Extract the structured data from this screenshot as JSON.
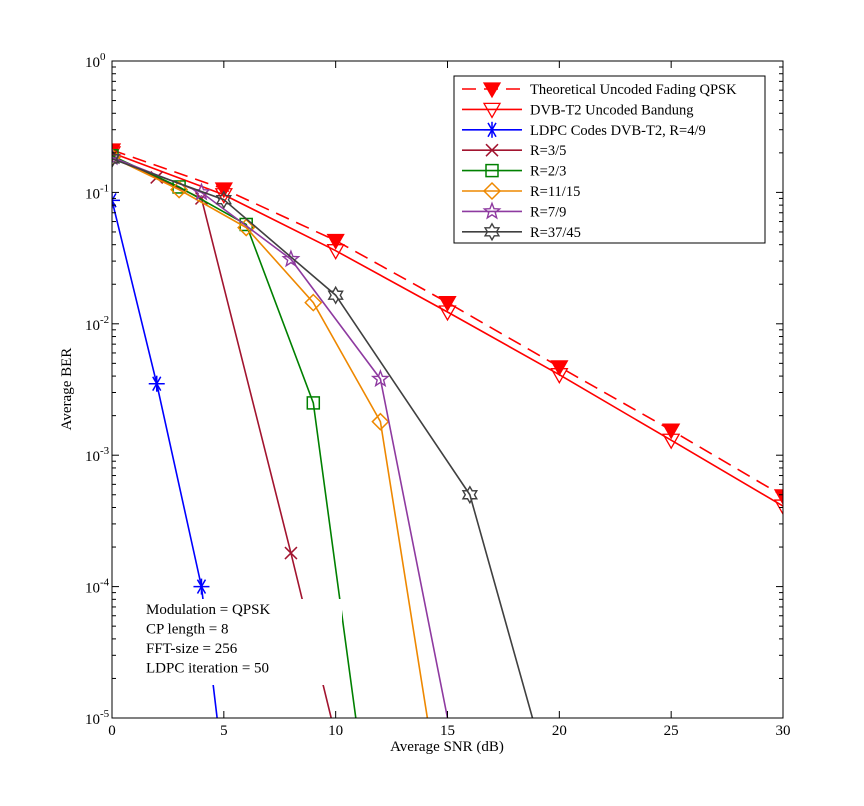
{
  "chart_data": {
    "type": "line",
    "title": "",
    "xlabel": "Average SNR (dB)",
    "ylabel": "Average BER",
    "xlim": [
      0,
      30
    ],
    "ylim": [
      1e-05,
      1
    ],
    "yscale": "log",
    "grid": false,
    "legend_position": "top-right",
    "x_ticks": [
      0,
      5,
      10,
      15,
      20,
      25,
      30
    ],
    "y_ticks": [
      {
        "value": 1,
        "base": "10",
        "exp": "0"
      },
      {
        "value": 0.1,
        "base": "10",
        "exp": "-1"
      },
      {
        "value": 0.01,
        "base": "10",
        "exp": "-2"
      },
      {
        "value": 0.001,
        "base": "10",
        "exp": "-3"
      },
      {
        "value": 0.0001,
        "base": "10",
        "exp": "-4"
      },
      {
        "value": 1e-05,
        "base": "10",
        "exp": "-5"
      }
    ],
    "series": [
      {
        "name": "Theoretical Uncoded Fading QPSK",
        "color": "#ff0000",
        "dash": true,
        "marker": "triangle-down-filled",
        "x": [
          0,
          5,
          10,
          15,
          20,
          25,
          30
        ],
        "y": [
          0.21,
          0.106,
          0.043,
          0.0145,
          0.0047,
          0.00155,
          0.00049
        ]
      },
      {
        "name": "DVB-T2 Uncoded Bandung",
        "color": "#ff0000",
        "dash": false,
        "marker": "triangle-down-open",
        "x": [
          0,
          5,
          10,
          15,
          20,
          25,
          30
        ],
        "y": [
          0.2,
          0.096,
          0.036,
          0.0123,
          0.0041,
          0.0013,
          0.00041
        ]
      },
      {
        "name": "LDPC Codes DVB-T2, R=4/9",
        "color": "#0000ff",
        "dash": false,
        "marker": "asterisk",
        "x": [
          0,
          2,
          4,
          4.7
        ],
        "y": [
          0.087,
          0.0035,
          0.0001,
          1e-05
        ]
      },
      {
        "name": "R=3/5",
        "color": "#a2142f",
        "dash": false,
        "marker": "x",
        "x": [
          0,
          2,
          4,
          8,
          9.8
        ],
        "y": [
          0.19,
          0.13,
          0.09,
          0.00018,
          1e-05
        ]
      },
      {
        "name": "R=2/3",
        "color": "#008000",
        "dash": false,
        "marker": "square",
        "x": [
          0,
          3,
          6,
          9,
          10.9
        ],
        "y": [
          0.19,
          0.11,
          0.057,
          0.0025,
          1e-05
        ]
      },
      {
        "name": "R=11/15",
        "color": "#ee8800",
        "dash": false,
        "marker": "diamond",
        "x": [
          0,
          3,
          6,
          9,
          12,
          14.1
        ],
        "y": [
          0.185,
          0.105,
          0.054,
          0.0145,
          0.0018,
          1e-05
        ]
      },
      {
        "name": "R=7/9",
        "color": "#8e3aa0",
        "dash": false,
        "marker": "pentagram",
        "x": [
          0,
          4,
          8,
          12,
          15
        ],
        "y": [
          0.185,
          0.1,
          0.031,
          0.0038,
          1e-05
        ]
      },
      {
        "name": "R=37/45",
        "color": "#404040",
        "dash": false,
        "marker": "hexagram",
        "x": [
          0,
          5,
          10,
          16,
          18.8
        ],
        "y": [
          0.18,
          0.088,
          0.0165,
          0.0005,
          1e-05
        ]
      }
    ],
    "annotations": [
      "Modulation = QPSK",
      "CP length = 8",
      "FFT-size = 256",
      "LDPC iteration = 50"
    ]
  }
}
